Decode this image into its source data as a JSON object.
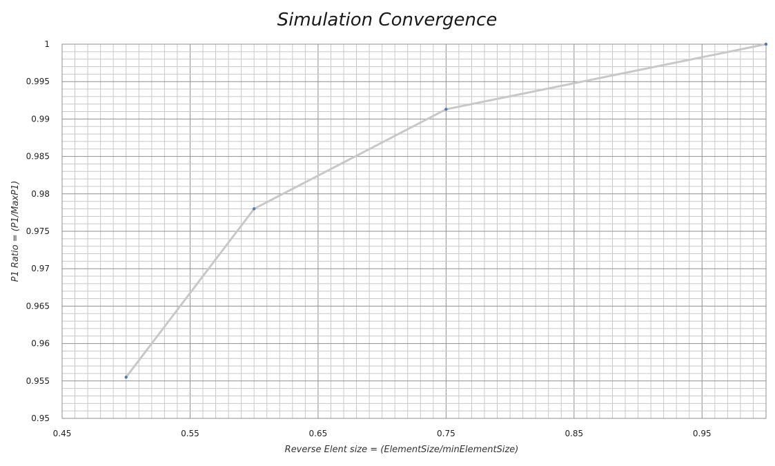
{
  "chart_data": {
    "type": "line",
    "title": "Simulation Convergence",
    "xlabel": "Reverse Elent size = (ElementSize/minElementSize)",
    "ylabel": "P1 Ratio = (P1/MaxP1)",
    "xlim": [
      0.45,
      1.0
    ],
    "ylim": [
      0.95,
      1.0
    ],
    "x_ticks": [
      "0.45",
      "0.55",
      "0.65",
      "0.75",
      "0.85",
      "0.95"
    ],
    "y_ticks": [
      "0.95",
      "0.955",
      "0.96",
      "0.965",
      "0.97",
      "0.975",
      "0.98",
      "0.985",
      "0.99",
      "0.995",
      "1"
    ],
    "x_tick_values": [
      0.45,
      0.55,
      0.65,
      0.75,
      0.85,
      0.95
    ],
    "y_tick_values": [
      0.95,
      0.955,
      0.96,
      0.965,
      0.97,
      0.975,
      0.98,
      0.985,
      0.99,
      0.995,
      1.0
    ],
    "grid": true,
    "legend": "none",
    "line_color": "#c8c8c8",
    "marker_color": "#4a7ab5",
    "series": [
      {
        "x": [
          0.5,
          0.6,
          0.75,
          1.0
        ],
        "y": [
          0.9555,
          0.978,
          0.9913,
          1.0
        ]
      }
    ]
  }
}
